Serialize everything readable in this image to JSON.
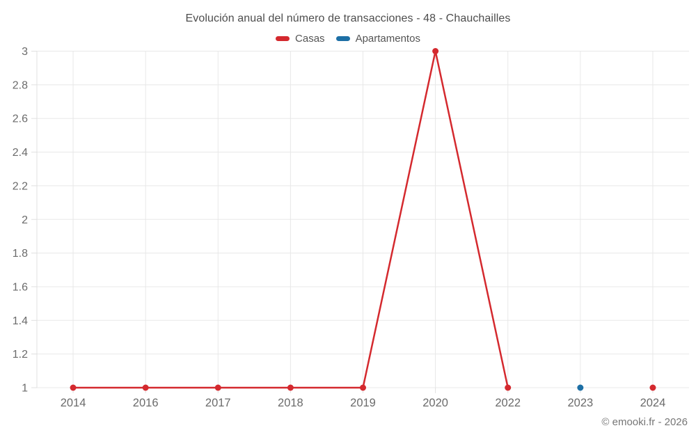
{
  "title": "Evolución anual del número de transacciones - 48 - Chauchailles",
  "legend": {
    "items": [
      {
        "label": "Casas",
        "color": "#d4292e"
      },
      {
        "label": "Apartamentos",
        "color": "#1d6fa5"
      }
    ]
  },
  "footer": {
    "copyright": "© emooki.fr - 2026"
  },
  "chart_data": {
    "type": "line",
    "title": "Evolución anual del número de transacciones - 48 - Chauchailles",
    "categories": [
      "2014",
      "2016",
      "2017",
      "2018",
      "2019",
      "2020",
      "2022",
      "2023",
      "2024"
    ],
    "series": [
      {
        "name": "Casas",
        "color": "#d4292e",
        "values": [
          1,
          1,
          1,
          1,
          1,
          3,
          1,
          null,
          1
        ]
      },
      {
        "name": "Apartamentos",
        "color": "#1d6fa5",
        "values": [
          null,
          null,
          null,
          null,
          null,
          null,
          null,
          1,
          null
        ]
      }
    ],
    "ylim": [
      1,
      3
    ],
    "yticks": [
      1,
      1.2,
      1.4,
      1.6,
      1.8,
      2,
      2.2,
      2.4,
      2.6,
      2.8,
      3
    ],
    "ytick_labels": [
      "1",
      "1.2",
      "1.4",
      "1.6",
      "1.8",
      "2",
      "2.2",
      "2.4",
      "2.6",
      "2.8",
      "3"
    ],
    "xlabel": "",
    "ylabel": "",
    "grid": true,
    "legend_position": "top",
    "colors": {
      "grid": "#e8e8e8",
      "axis": "#e0e0e0",
      "tick_label": "#6b6b6b",
      "title": "#4d4d4d"
    },
    "marker_radius": 4.5,
    "line_width": 2.5
  }
}
